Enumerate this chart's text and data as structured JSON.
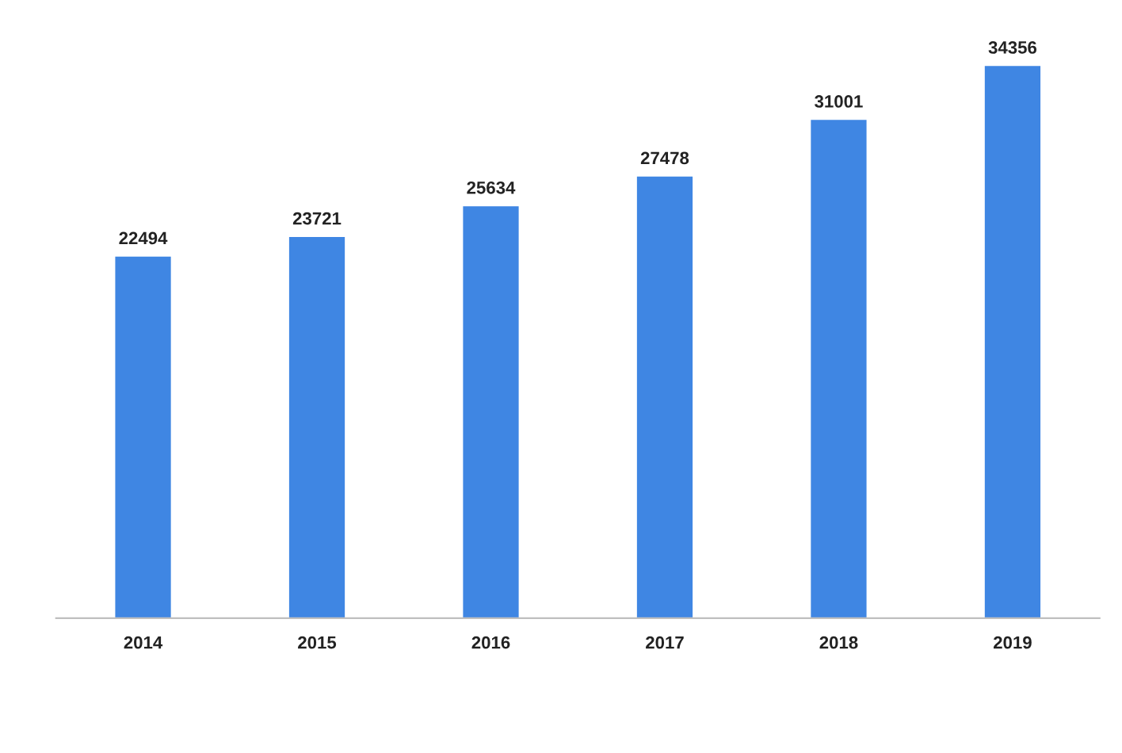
{
  "chart_data": {
    "type": "bar",
    "categories": [
      "2014",
      "2015",
      "2016",
      "2017",
      "2018",
      "2019"
    ],
    "values": [
      22494,
      23721,
      25634,
      27478,
      31001,
      34356
    ],
    "color": "#3f86e3",
    "data_labels": true,
    "grid": false,
    "legend": false,
    "tick_labels": "x"
  }
}
